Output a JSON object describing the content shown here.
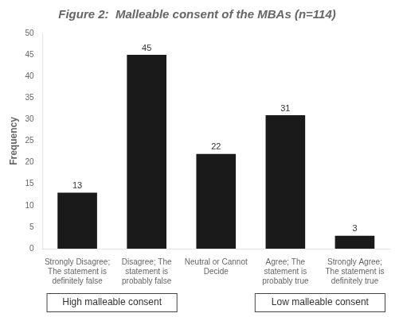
{
  "chart_data": {
    "type": "bar",
    "title": "Figure 2:  Malleable consent of the MBAs (n=114)",
    "ylabel": "Frequency",
    "categories": [
      "Strongly Disagree;\nThe statement is\ndefinitely false",
      "Disagree; The\nstatement is\nprobably false",
      "Neutral or Cannot\nDecide",
      "Agree; The\nstatement is\nprobably true",
      "Strongly Agree;\nThe statement is\ndefinitely true"
    ],
    "values": [
      13,
      45,
      22,
      31,
      3
    ],
    "color": "#1a1a1a",
    "ylim": [
      0,
      50
    ],
    "yticks": [
      0,
      5,
      10,
      15,
      20,
      25,
      30,
      35,
      40,
      45,
      50
    ],
    "grid": false,
    "data_labels": true,
    "annotations": [
      "High malleable consent",
      "Low malleable consent"
    ]
  }
}
